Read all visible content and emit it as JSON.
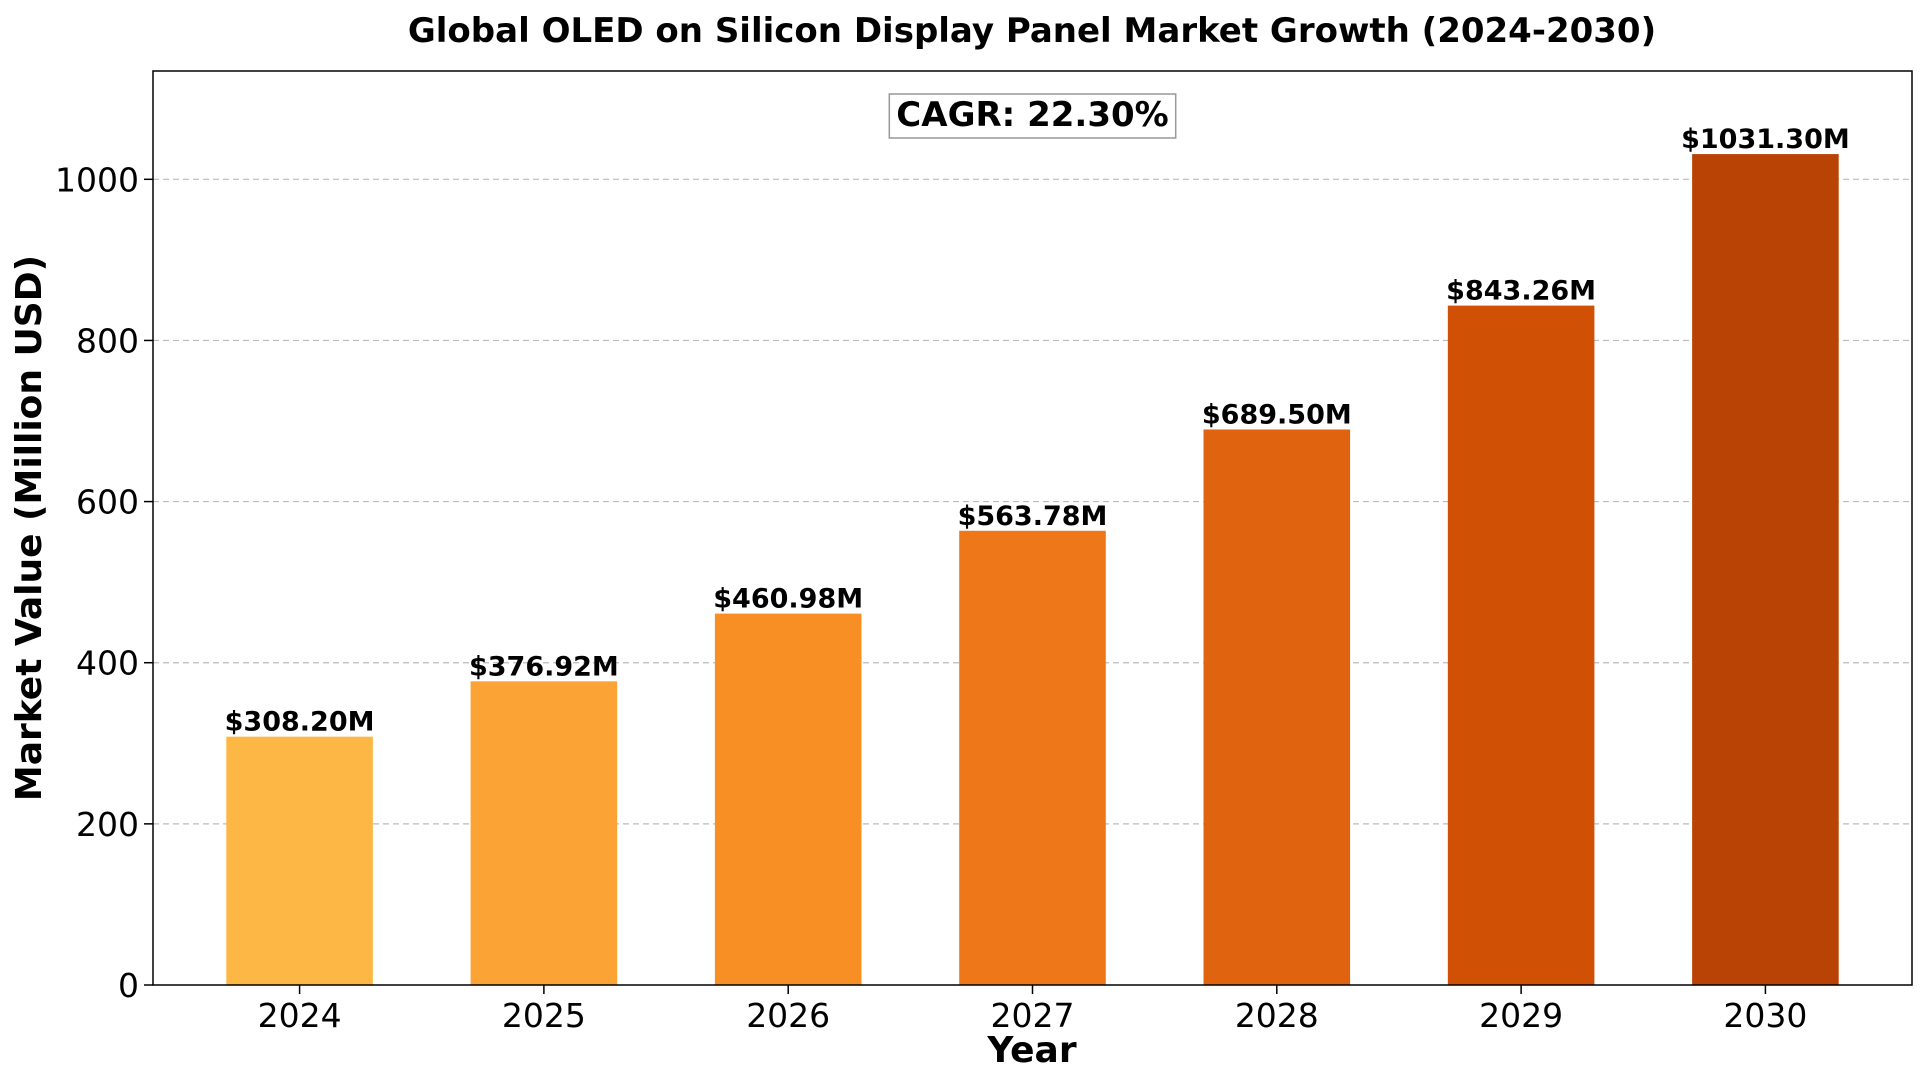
{
  "chart_data": {
    "type": "bar",
    "title": "Global OLED on Silicon Display Panel Market Growth (2024-2030)",
    "xlabel": "Year",
    "ylabel": "Market Value (Million USD)",
    "categories": [
      "2024",
      "2025",
      "2026",
      "2027",
      "2028",
      "2029",
      "2030"
    ],
    "values": [
      308.2,
      376.92,
      460.98,
      563.78,
      689.5,
      843.26,
      1031.3
    ],
    "data_labels": [
      "$308.20M",
      "$376.92M",
      "$460.98M",
      "$563.78M",
      "$689.50M",
      "$843.26M",
      "$1031.30M"
    ],
    "bar_colors": [
      "#FDB745",
      "#FCA335",
      "#F88F24",
      "#EE771A",
      "#E06410",
      "#D05105",
      "#B84304"
    ],
    "ylim": [
      0,
      1134.43
    ],
    "yticks": [
      0,
      200,
      400,
      600,
      800,
      1000
    ],
    "ytick_labels": [
      "0",
      "200",
      "400",
      "600",
      "800",
      "1000"
    ],
    "grid": "y-dashed",
    "annotation": "CAGR: 22.30%",
    "annotation_position": "top-center"
  }
}
